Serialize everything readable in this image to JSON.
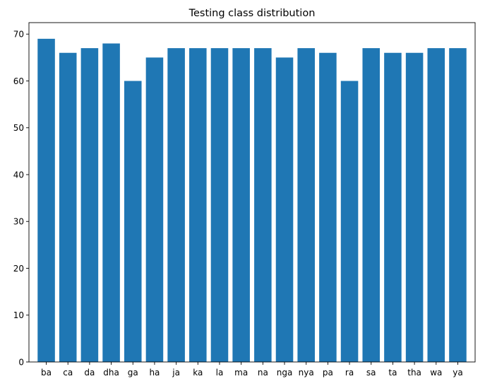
{
  "chart_data": {
    "type": "bar",
    "title": "Testing class distribution",
    "xlabel": "",
    "ylabel": "",
    "categories": [
      "ba",
      "ca",
      "da",
      "dha",
      "ga",
      "ha",
      "ja",
      "ka",
      "la",
      "ma",
      "na",
      "nga",
      "nya",
      "pa",
      "ra",
      "sa",
      "ta",
      "tha",
      "wa",
      "ya"
    ],
    "values": [
      69,
      66,
      67,
      68,
      60,
      65,
      67,
      67,
      67,
      67,
      67,
      65,
      67,
      66,
      60,
      67,
      66,
      66,
      67,
      67
    ],
    "ylim": [
      0,
      72.45
    ],
    "yticks": [
      0,
      10,
      20,
      30,
      40,
      50,
      60,
      70
    ],
    "grid": false,
    "legend": "none",
    "colors": {
      "bar": "#1f77b4",
      "axis": "#000000",
      "background": "#ffffff"
    }
  }
}
